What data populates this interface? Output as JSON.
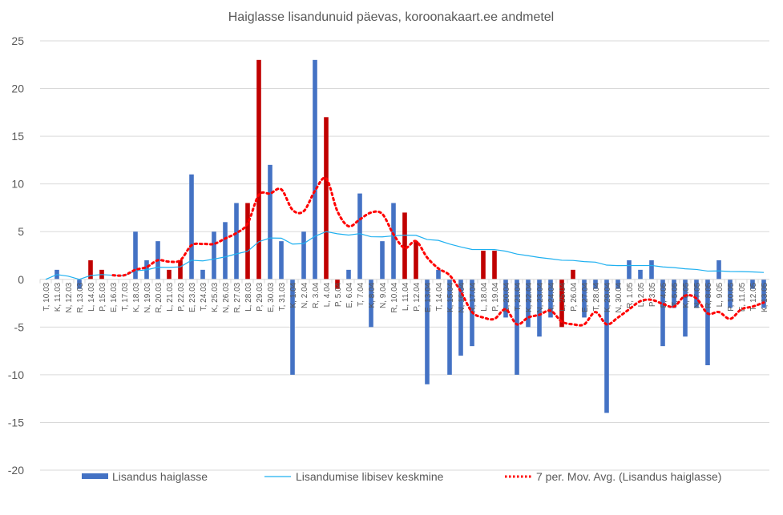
{
  "chart_data": {
    "type": "bar",
    "title": "Haiglasse lisandunuid päevas, koroonakaart.ee andmetel",
    "xlabel": "",
    "ylabel": "",
    "ylim": [
      -20,
      25
    ],
    "yticks": [
      25,
      20,
      15,
      10,
      5,
      0,
      -5,
      -10,
      -15,
      -20
    ],
    "grid": true,
    "legend_position": "bottom",
    "categories": [
      "T, 10.03",
      "K, 11.03",
      "N, 12.03",
      "R, 13.03",
      "L, 14.03",
      "P, 15.03",
      "E, 16.03",
      "T, 17.03",
      "K, 18.03",
      "N, 19.03",
      "R, 20.03",
      "L, 21.03",
      "P, 22.03",
      "E, 23.03",
      "T, 24.03",
      "K, 25.03",
      "N, 26.03",
      "R, 27.03",
      "L, 28.03",
      "P, 29.03",
      "E, 30.03",
      "T, 31.03",
      "K, 1.04",
      "N, 2.04",
      "R, 3.04",
      "L, 4.04",
      "P, 5.04",
      "E, 6.04",
      "T, 7.04",
      "K, 8.04",
      "N, 9.04",
      "R, 10.04",
      "L, 11.04",
      "P, 12.04",
      "E, 13.04",
      "T, 14.04",
      "K, 15.04",
      "N, 16.04",
      "R, 17.04",
      "L, 18.04",
      "P, 19.04",
      "E, 20.04",
      "T, 21.04",
      "K, 22.04",
      "N, 23.04",
      "R, 24.04",
      "L, 25.04",
      "P, 26.04",
      "E, 27.04",
      "T, 28.04",
      "K, 29.04",
      "N, 30.04",
      "R, 1.05",
      "L, 2.05",
      "P, 3.05",
      "E, 4.05",
      "T, 5.05",
      "K, 6.05",
      "N, 7.05",
      "R, 8.05",
      "L, 9.05",
      "P, 10.05",
      "E, 11.05",
      "T, 12.05",
      "K, 13.05"
    ],
    "series": [
      {
        "name": "Lisandus haiglasse",
        "kind": "bar",
        "color": "#4472C4",
        "highlight_color": "#C00000",
        "values": [
          0,
          1,
          0,
          -1,
          2,
          1,
          0,
          0,
          5,
          2,
          4,
          1,
          2,
          11,
          1,
          5,
          6,
          8,
          8,
          23,
          12,
          4,
          -10,
          5,
          23,
          17,
          -1,
          1,
          9,
          -5,
          4,
          8,
          7,
          4,
          -11,
          1,
          -10,
          -8,
          -7,
          3,
          3,
          -4,
          -10,
          -5,
          -6,
          -4,
          -5,
          1,
          -4,
          -1,
          -14,
          -1,
          2,
          1,
          2,
          -7,
          -3,
          -6,
          -3,
          -9,
          2,
          -3,
          0,
          -1,
          -3
        ],
        "highlighted": [
          4,
          5,
          11,
          12,
          18,
          19,
          25,
          26,
          32,
          33,
          39,
          40,
          46,
          47
        ]
      },
      {
        "name": "Lisandumise libisev keskmine",
        "kind": "line",
        "color": "#1EB0F0"
      },
      {
        "name": "7 per. Mov. Avg. (Lisandus haiglasse)",
        "kind": "dotted-line",
        "color": "#FF0000",
        "period": 7
      }
    ]
  }
}
